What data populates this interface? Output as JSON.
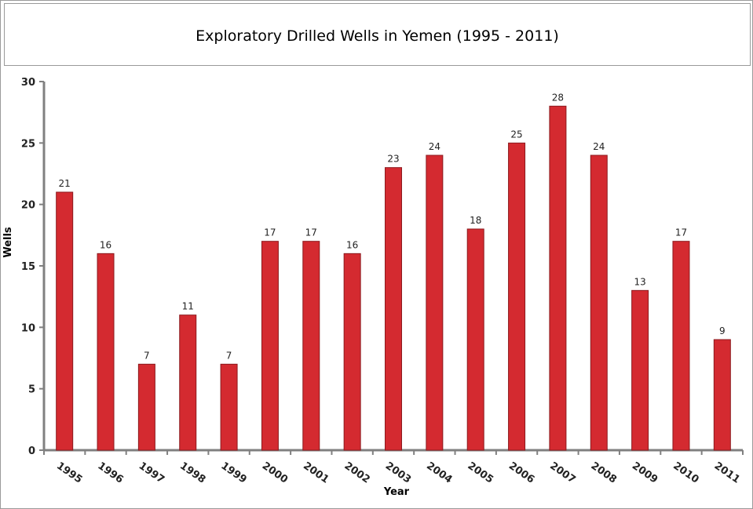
{
  "chart_data": {
    "type": "bar",
    "title": "Exploratory Drilled Wells in Yemen (1995 - 2011)",
    "xlabel": "Year",
    "ylabel": "Wells",
    "categories": [
      "1995",
      "1996",
      "1997",
      "1998",
      "1999",
      "2000",
      "2001",
      "2002",
      "2003",
      "2004",
      "2005",
      "2006",
      "2007",
      "2008",
      "2009",
      "2010",
      "2011"
    ],
    "values": [
      21,
      16,
      7,
      11,
      7,
      17,
      17,
      16,
      23,
      24,
      18,
      25,
      28,
      24,
      13,
      17,
      9
    ],
    "ylim": [
      0,
      30
    ],
    "yticks": [
      0,
      5,
      10,
      15,
      20,
      25,
      30
    ],
    "grid": false,
    "data_labels": true,
    "bar_color": "#d42a30",
    "bar_edge_color": "#8c1a1e"
  }
}
